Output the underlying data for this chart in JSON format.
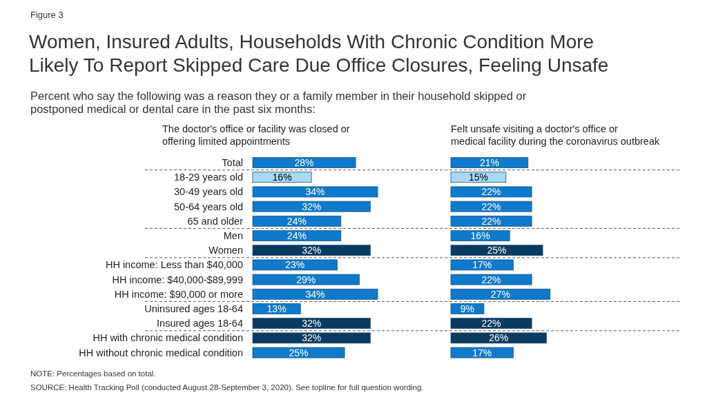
{
  "chart_data": [
    {
      "type": "other",
      "title": "Women, Insured Adults, Households With Chronic Condition More Likely To Report Skipped Care Due Office Closures, Feeling Unsafe",
      "subtitle": "Percent who say the following was a reason they or a family member in their household skipped or postponed medical or dental care in the past six months:",
      "annotations": [
        "Figure 3",
        "NOTE: Percentages based on total.",
        "SOURCE: Health Tracking Poll (conducted August 28-September 3, 2020). See topline for full question wording."
      ]
    },
    {
      "type": "bar",
      "orientation": "horizontal",
      "title": "The doctor's office or facility was closed or offering limited appointments",
      "categories": [
        "Total",
        "18-29 years old",
        "30-49 years old",
        "50-64 years old",
        "65 and older",
        "Men",
        "Women",
        "HH income: Less than $40,000",
        "HH income: $40,000-$89,999",
        "HH income: $90,000 or more",
        "Uninsured ages 18-64",
        "Insured ages 18-64",
        "HH with chronic medical condition",
        "HH without chronic medical condition"
      ],
      "values": [
        28,
        16,
        34,
        32,
        24,
        24,
        32,
        23,
        29,
        34,
        13,
        32,
        32,
        25
      ],
      "value_labels": [
        "28%",
        "16%",
        "34%",
        "32%",
        "24%",
        "24%",
        "32%",
        "23%",
        "29%",
        "34%",
        "13%",
        "32%",
        "32%",
        "25%"
      ],
      "colors": [
        "#0f7acb",
        "#a9d9f5",
        "#0f7acb",
        "#0f7acb",
        "#0f7acb",
        "#0f7acb",
        "#0b3a5f",
        "#0f7acb",
        "#0f7acb",
        "#0f7acb",
        "#0f7acb",
        "#0b3a5f",
        "#0b3a5f",
        "#0f7acb"
      ],
      "tick_labels": "y"
    },
    {
      "type": "bar",
      "orientation": "horizontal",
      "title": "Felt unsafe visiting a doctor's office or medical facility during the coronavirus outbreak",
      "categories": [
        null,
        null,
        null,
        null,
        null,
        null,
        null,
        null,
        null,
        null,
        null,
        null,
        null,
        null
      ],
      "values": [
        21,
        15,
        22,
        22,
        22,
        16,
        25,
        17,
        22,
        27,
        9,
        22,
        26,
        17
      ],
      "value_labels": [
        "21%",
        "15%",
        "22%",
        "22%",
        "22%",
        "16%",
        "25%",
        "17%",
        "22%",
        "27%",
        "9%",
        "22%",
        "26%",
        "17%"
      ],
      "colors": [
        "#0f7acb",
        "#a9d9f5",
        "#0f7acb",
        "#0f7acb",
        "#0f7acb",
        "#0f7acb",
        "#0b3a5f",
        "#0f7acb",
        "#0f7acb",
        "#0f7acb",
        "#0f7acb",
        "#0b3a5f",
        "#0b3a5f",
        "#0f7acb"
      ],
      "tick_labels": false
    }
  ]
}
